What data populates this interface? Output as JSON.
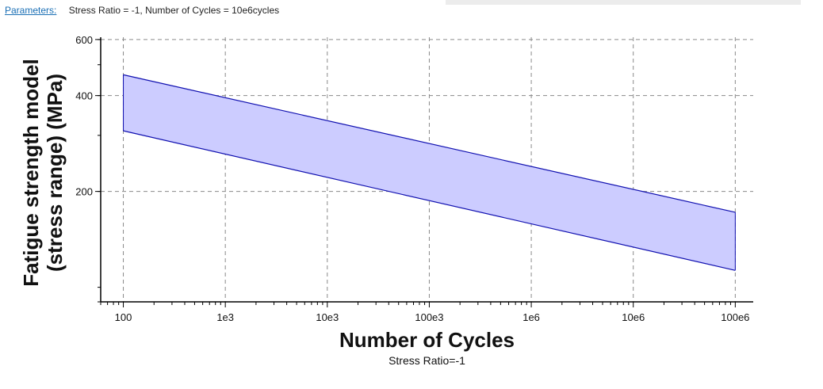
{
  "parameters": {
    "link_label": "Parameters:",
    "text": "Stress Ratio = -1, Number of Cycles = 10e6cycles"
  },
  "chart_data": {
    "type": "area",
    "title": "",
    "subtitle": "Stress Ratio=-1",
    "xlabel": "Number of Cycles",
    "ylabel_line1": "Fatigue strength model",
    "ylabel_line2": "(stress range) (MPa)",
    "xscale": "log",
    "yscale": "log",
    "xlim": [
      60,
      150000000
    ],
    "ylim": [
      90,
      610
    ],
    "x_ticks": [
      {
        "value": 100,
        "label": "100"
      },
      {
        "value": 1000,
        "label": "1e3"
      },
      {
        "value": 10000,
        "label": "10e3"
      },
      {
        "value": 100000,
        "label": "100e3"
      },
      {
        "value": 1000000,
        "label": "1e6"
      },
      {
        "value": 10000000,
        "label": "10e6"
      },
      {
        "value": 100000000,
        "label": "100e6"
      }
    ],
    "y_ticks": [
      {
        "value": 200,
        "label": "200"
      },
      {
        "value": 400,
        "label": "400"
      },
      {
        "value": 600,
        "label": "600"
      }
    ],
    "grid": true,
    "band": {
      "x": [
        100,
        100000000
      ],
      "upper": [
        465,
        172
      ],
      "lower": [
        310,
        113
      ]
    },
    "colors": {
      "band_fill": "#ccccff",
      "band_line": "#1010b0",
      "grid": "#8a8a8a"
    }
  }
}
